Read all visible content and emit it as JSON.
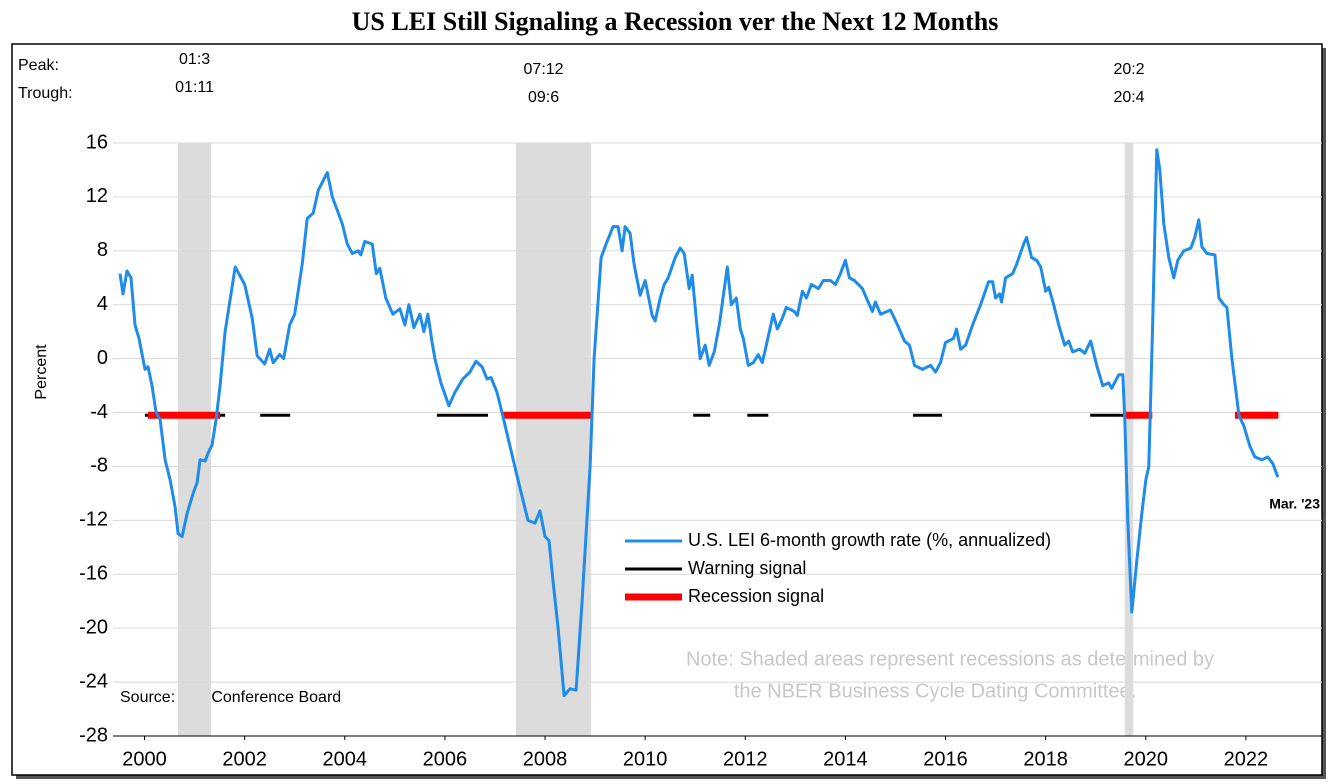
{
  "chart_data": {
    "type": "line",
    "title": "US LEI Still Signaling a Recession ver the Next 12 Months",
    "y_label": "Percent",
    "peak_label": "Peak:",
    "trough_label": "Trough:",
    "source": "Source: The Conference Board",
    "note": [
      "Note: Shaded areas represent recessions as determined by",
      "the NBER Business Cycle Dating Committee."
    ],
    "end_label": "Mar. '23",
    "xlim": [
      1999.87,
      2024.02
    ],
    "ylim": [
      -28,
      16
    ],
    "yticks": [
      16,
      12,
      8,
      4,
      0,
      -4,
      -8,
      -12,
      -16,
      -20,
      -24,
      -28
    ],
    "xticks": [
      {
        "value": 2000.5,
        "label": "2000"
      },
      {
        "value": 2002.5,
        "label": "2002"
      },
      {
        "value": 2004.5,
        "label": "2004"
      },
      {
        "value": 2006.5,
        "label": "2006"
      },
      {
        "value": 2008.5,
        "label": "2008"
      },
      {
        "value": 2010.5,
        "label": "2010"
      },
      {
        "value": 2012.5,
        "label": "2012"
      },
      {
        "value": 2014.5,
        "label": "2014"
      },
      {
        "value": 2016.5,
        "label": "2016"
      },
      {
        "value": 2018.5,
        "label": "2018"
      },
      {
        "value": 2020.5,
        "label": "2020"
      },
      {
        "value": 2022.5,
        "label": "2022"
      }
    ],
    "grid": true,
    "recession_color": "#dcdcdc",
    "recessions": [
      {
        "start": 2001.17,
        "end": 2001.83,
        "peak": "01:3",
        "trough": "01:11"
      },
      {
        "start": 2007.92,
        "end": 2009.42,
        "peak": "07:12",
        "trough": "09:6"
      },
      {
        "start": 2020.08,
        "end": 2020.25,
        "peak": "20:2",
        "trough": "20:4"
      }
    ],
    "series": [
      {
        "name": "U.S. LEI 6-month growth rate (%, annualized)",
        "color": "#1e8ce8",
        "x": [
          2000.01,
          2000.07,
          2000.15,
          2000.23,
          2000.31,
          2000.39,
          2000.51,
          2000.57,
          2000.65,
          2000.73,
          2000.81,
          2000.91,
          2001.01,
          2001.11,
          2001.17,
          2001.25,
          2001.35,
          2001.47,
          2001.55,
          2001.61,
          2001.71,
          2001.77,
          2001.85,
          2001.93,
          2002.01,
          2002.11,
          2002.31,
          2002.5,
          2002.65,
          2002.75,
          2002.9,
          2003.0,
          2003.07,
          2003.2,
          2003.28,
          2003.4,
          2003.5,
          2003.65,
          2003.75,
          2003.87,
          2003.97,
          2004.15,
          2004.25,
          2004.45,
          2004.55,
          2004.65,
          2004.77,
          2004.82,
          2004.9,
          2005.05,
          2005.13,
          2005.2,
          2005.32,
          2005.46,
          2005.6,
          2005.7,
          2005.78,
          2005.88,
          2006.0,
          2006.08,
          2006.16,
          2006.24,
          2006.3,
          2006.42,
          2006.58,
          2006.7,
          2006.86,
          2007.0,
          2007.12,
          2007.24,
          2007.34,
          2007.42,
          2007.54,
          2007.66,
          2007.8,
          2007.96,
          2008.16,
          2008.3,
          2008.4,
          2008.5,
          2008.58,
          2008.66,
          2008.76,
          2008.88,
          2009.0,
          2009.12,
          2009.24,
          2009.4,
          2009.48,
          2009.62,
          2009.72,
          2009.86,
          2009.96,
          2010.04,
          2010.1,
          2010.2,
          2010.28,
          2010.4,
          2010.5,
          2010.64,
          2010.7,
          2010.8,
          2010.88,
          2010.96,
          2011.1,
          2011.2,
          2011.28,
          2011.38,
          2011.44,
          2011.52,
          2011.6,
          2011.7,
          2011.78,
          2011.88,
          2011.98,
          2012.14,
          2012.22,
          2012.32,
          2012.4,
          2012.46,
          2012.56,
          2012.66,
          2012.76,
          2012.84,
          2012.92,
          2012.98,
          2013.06,
          2013.14,
          2013.24,
          2013.32,
          2013.48,
          2013.54,
          2013.64,
          2013.72,
          2013.82,
          2013.96,
          2014.06,
          2014.2,
          2014.3,
          2014.4,
          2014.5,
          2014.58,
          2014.68,
          2014.84,
          2014.92,
          2015.04,
          2015.1,
          2015.2,
          2015.4,
          2015.54,
          2015.68,
          2015.78,
          2015.88,
          2016.04,
          2016.2,
          2016.3,
          2016.4,
          2016.5,
          2016.66,
          2016.72,
          2016.8,
          2016.9,
          2017.04,
          2017.2,
          2017.36,
          2017.44,
          2017.5,
          2017.58,
          2017.62,
          2017.7,
          2017.84,
          2017.92,
          2018.06,
          2018.12,
          2018.22,
          2018.32,
          2018.4,
          2018.5,
          2018.56,
          2018.66,
          2018.76,
          2018.88,
          2018.96,
          2019.04,
          2019.18,
          2019.28,
          2019.4,
          2019.52,
          2019.64,
          2019.76,
          2019.82,
          2019.96,
          2020.04,
          2020.08,
          2020.14,
          2020.22,
          2020.32,
          2020.42,
          2020.5,
          2020.56,
          2020.64,
          2020.72,
          2020.78,
          2020.86,
          2020.96,
          2021.06,
          2021.14,
          2021.26,
          2021.4,
          2021.48,
          2021.56,
          2021.62,
          2021.72,
          2021.88,
          2021.96,
          2022.06,
          2022.12,
          2022.22,
          2022.36,
          2022.46,
          2022.58,
          2022.68,
          2022.82,
          2022.94,
          2023.04,
          2023.14
        ],
        "values": [
          6.3,
          4.8,
          6.5,
          6.0,
          2.5,
          1.5,
          -0.8,
          -0.6,
          -2,
          -4,
          -4.5,
          -7.5,
          -9,
          -11,
          -13,
          -13.2,
          -11.5,
          -10,
          -9.2,
          -7.5,
          -7.6,
          -7,
          -6.4,
          -4.5,
          -2,
          2,
          6.8,
          5.5,
          3,
          0.2,
          -0.4,
          0.7,
          -0.3,
          0.3,
          0,
          2.5,
          3.3,
          7,
          10.4,
          10.8,
          12.5,
          13.8,
          12,
          10,
          8.5,
          7.8,
          8.0,
          7.7,
          8.7,
          8.5,
          6.3,
          6.7,
          4.5,
          3.3,
          3.7,
          2.5,
          4,
          2.3,
          3.3,
          2,
          3.3,
          1.3,
          0,
          -1.8,
          -3.5,
          -2.5,
          -1.5,
          -1,
          -0.2,
          -0.6,
          -1.5,
          -1.4,
          -2.5,
          -4.3,
          -6.5,
          -9,
          -12,
          -12.2,
          -11.3,
          -13.2,
          -13.5,
          -16.5,
          -20,
          -25,
          -24.5,
          -24.6,
          -18,
          -8,
          0,
          7.5,
          8.5,
          9.8,
          9.8,
          8,
          9.8,
          9.3,
          7,
          4.7,
          5.8,
          3.2,
          2.8,
          4.5,
          5.5,
          6,
          7.5,
          8.2,
          7.8,
          5.2,
          6.2,
          3,
          0,
          1,
          -0.5,
          0.5,
          2.5,
          6.8,
          4,
          4.5,
          2.2,
          1.5,
          -0.5,
          -0.3,
          0.3,
          -0.3,
          1,
          2,
          3.3,
          2.2,
          3,
          3.8,
          3.5,
          3.2,
          5,
          4.5,
          5.5,
          5.2,
          5.8,
          5.8,
          5.5,
          6.3,
          7.3,
          6,
          5.8,
          5.2,
          4.5,
          3.5,
          4.2,
          3.3,
          3.6,
          2.5,
          1.3,
          1,
          -0.5,
          -0.8,
          -0.5,
          -1,
          -0.3,
          1.2,
          1.5,
          2.2,
          0.7,
          1,
          2.5,
          4,
          5.7,
          5.7,
          4.5,
          4.8,
          4.2,
          6,
          6.3,
          7,
          8.5,
          9,
          7.5,
          7.3,
          6.8,
          5,
          5.3,
          4,
          2.5,
          1,
          1.3,
          0.5,
          0.7,
          0.4,
          1.3,
          -0.5,
          -2,
          -1.8,
          -2.2,
          -1.2,
          -1.2,
          -4.5,
          -12,
          -18.8,
          -15,
          -11.5,
          -9,
          -8,
          3,
          15.5,
          14,
          10,
          7.5,
          6,
          7.3,
          8,
          8.2,
          9,
          10.3,
          8.3,
          7.8,
          7.7,
          4.5,
          4,
          3.8,
          0,
          -4.2,
          -5,
          -6.5,
          -7.3,
          -7.5,
          -7.3,
          -7.8,
          -8.8
        ]
      },
      {
        "name": "Warning signal",
        "color": "#000000",
        "x": [
          2000.51,
          2002.11,
          null,
          2002.81,
          2003.41,
          null,
          2006.34,
          2007.36,
          null,
          2011.46,
          2011.8,
          null,
          2012.54,
          2012.96,
          null,
          2015.85,
          2016.43,
          null,
          2019.39,
          2020.13
        ],
        "values": [
          -4.2,
          -4.2,
          null,
          -4.2,
          -4.2,
          null,
          -4.2,
          -4.2,
          null,
          -4.2,
          -4.2,
          null,
          -4.2,
          -4.2,
          null,
          -4.2,
          -4.2,
          null,
          -4.2,
          -4.2
        ]
      },
      {
        "name": "Recession signal",
        "color": "#ff0000",
        "x": [
          2000.57,
          2002.01,
          null,
          2007.64,
          2009.44,
          null,
          2020.09,
          2020.63,
          null,
          2022.28,
          2023.15
        ],
        "values": [
          -4.2,
          -4.2,
          null,
          -4.2,
          -4.2,
          null,
          -4.2,
          -4.2,
          null,
          -4.2,
          -4.2
        ]
      }
    ]
  }
}
